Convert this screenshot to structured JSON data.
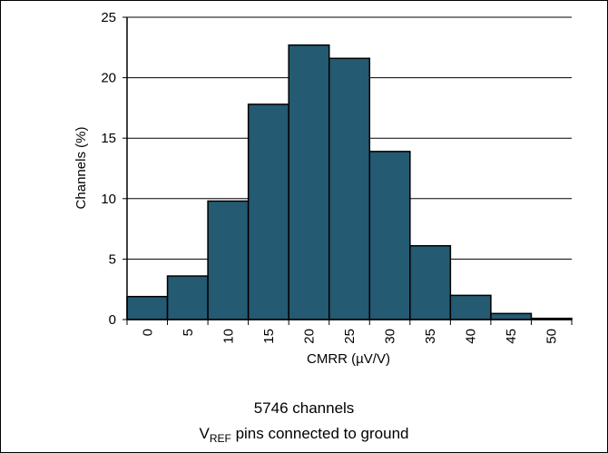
{
  "chart_data": {
    "type": "bar",
    "subtype": "histogram",
    "categories": [
      "0",
      "5",
      "10",
      "15",
      "20",
      "25",
      "30",
      "35",
      "40",
      "45",
      "50"
    ],
    "values": [
      1.9,
      3.6,
      9.8,
      17.8,
      22.7,
      21.6,
      13.9,
      6.1,
      2.0,
      0.5,
      0.1
    ],
    "xlabel": "CMRR (µV/V)",
    "ylabel": "Channels (%)",
    "ylim": [
      0,
      25
    ],
    "yticks": [
      0,
      5,
      10,
      15,
      20,
      25
    ],
    "grid": "horizontal",
    "bar_color": "#245a72",
    "bar_edge_color": "#000000"
  },
  "caption": {
    "line1": "5746 channels",
    "line2_main": "V",
    "line2_sub": "REF",
    "line2_rest": " pins connected to ground"
  }
}
